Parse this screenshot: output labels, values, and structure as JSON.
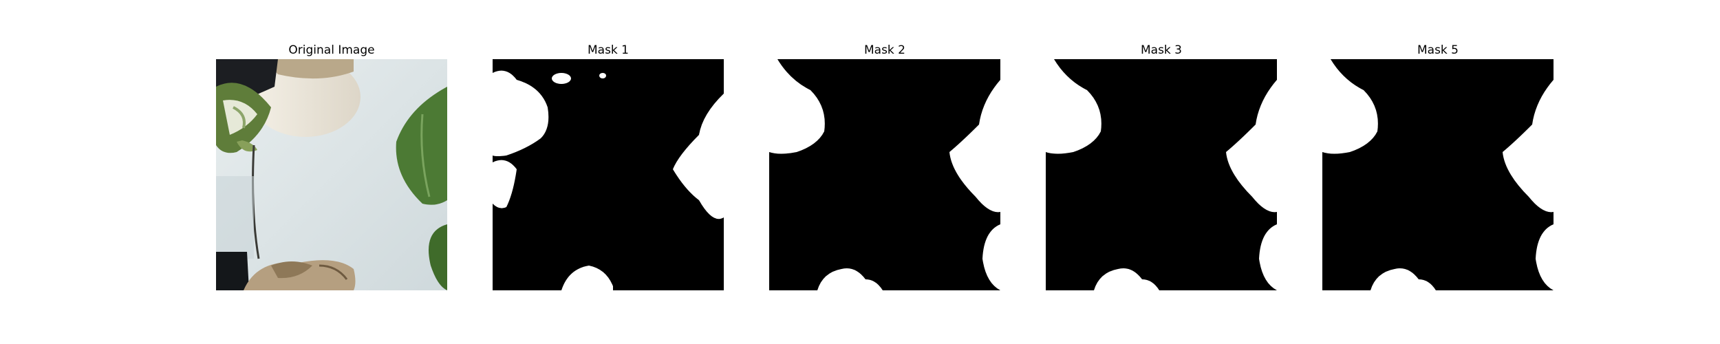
{
  "panels": [
    {
      "title": "Original Image",
      "kind": "photo"
    },
    {
      "title": "Mask 1",
      "kind": "mask"
    },
    {
      "title": "Mask 2",
      "kind": "mask"
    },
    {
      "title": "Mask 3",
      "kind": "mask"
    },
    {
      "title": "Mask 5",
      "kind": "mask"
    }
  ],
  "colors": {
    "background": "#ffffff",
    "mask_foreground": "#ffffff",
    "mask_background": "#000000",
    "leaf_green": "#3f6b2a",
    "wall": "#dfe6e8"
  }
}
